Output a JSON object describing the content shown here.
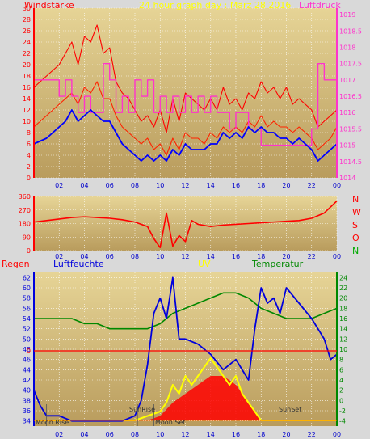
{
  "colors": {
    "bg": "#d9d9d9",
    "plot_top": "#e6d496",
    "plot_bottom": "#b99c5d",
    "wind": "#ff2200",
    "gust": "#ff0000",
    "pressure": "#ff33cc",
    "avg_wind": "#0000ff",
    "humidity": "#0000dd",
    "temperature": "#008800",
    "uv": "#ffff00",
    "rain_axis": "#ff0000",
    "solar_fill": "#ff0000",
    "yellow_text": "#ffff00"
  },
  "header": {
    "left_label": "Windstärke",
    "center_label": "24 hour graph day : März 28 2016",
    "right_label": "Luftdruck"
  },
  "panel2": {
    "compass": [
      "N",
      "W",
      "S",
      "O",
      "N"
    ]
  },
  "panel3": {
    "labels": {
      "rain": "Regen",
      "humidity": "Luftfeuchte",
      "uv": "UV",
      "temperature": "Temperatur"
    },
    "annotations": [
      "Moon Rise",
      "SunRise",
      "Moon Set",
      "SunSet"
    ]
  },
  "chart_data": [
    {
      "type": "line",
      "title": "24 hour graph day : März 28 2016",
      "x_ticks": [
        "02",
        "04",
        "06",
        "08",
        "10",
        "12",
        "14",
        "16",
        "18",
        "20",
        "22",
        "00"
      ],
      "y_left_label": "Windstärke",
      "y_left_ticks": [
        0,
        2,
        4,
        6,
        8,
        10,
        12,
        14,
        16,
        18,
        20,
        22,
        24,
        26,
        28,
        30
      ],
      "ylim_left": [
        0,
        30
      ],
      "y_right_label": "Luftdruck",
      "y_right_ticks": [
        1014,
        1014.5,
        1015,
        1015.5,
        1016,
        1016.5,
        1017,
        1017.5,
        1018,
        1018.5,
        1019
      ],
      "ylim_right": [
        1014,
        1019.2
      ],
      "series": [
        {
          "name": "wind_gust",
          "color": "#ff0000",
          "x": [
            0,
            1,
            2,
            2.5,
            3,
            3.5,
            4,
            4.5,
            5,
            5.5,
            6,
            6.5,
            7,
            7.5,
            8,
            8.5,
            9,
            9.5,
            10,
            10.5,
            11,
            11.5,
            12,
            12.5,
            13,
            13.5,
            14,
            14.5,
            15,
            15.5,
            16,
            16.5,
            17,
            17.5,
            18,
            18.5,
            19,
            19.5,
            20,
            20.5,
            21,
            21.5,
            22,
            22.5,
            23,
            23.5,
            24
          ],
          "values": [
            16,
            18,
            20,
            22,
            24,
            20,
            25,
            24,
            27,
            22,
            23,
            17,
            15,
            14,
            12,
            10,
            11,
            9,
            12,
            8,
            14,
            10,
            15,
            14,
            13,
            12,
            14,
            12,
            16,
            13,
            14,
            12,
            15,
            14,
            17,
            15,
            16,
            14,
            16,
            13,
            14,
            13,
            12,
            9,
            10,
            11,
            12
          ]
        },
        {
          "name": "wind_mean",
          "color": "#ff2200",
          "x": [
            0,
            1,
            2,
            2.5,
            3,
            3.5,
            4,
            4.5,
            5,
            5.5,
            6,
            6.5,
            7,
            7.5,
            8,
            8.5,
            9,
            9.5,
            10,
            10.5,
            11,
            11.5,
            12,
            12.5,
            13,
            13.5,
            14,
            14.5,
            15,
            15.5,
            16,
            16.5,
            17,
            17.5,
            18,
            18.5,
            19,
            19.5,
            20,
            20.5,
            21,
            21.5,
            22,
            22.5,
            23,
            23.5,
            24
          ],
          "values": [
            9,
            11,
            13,
            14,
            15,
            13,
            16,
            15,
            17,
            14,
            14,
            11,
            9,
            8,
            7,
            6,
            7,
            5,
            6,
            4,
            7,
            5,
            8,
            7,
            7,
            6,
            8,
            7,
            9,
            8,
            9,
            8,
            10,
            9,
            11,
            9,
            10,
            9,
            9,
            8,
            9,
            8,
            7,
            5,
            6,
            7,
            9
          ]
        },
        {
          "name": "avg_wind",
          "color": "#0000ff",
          "x": [
            0,
            1,
            2,
            2.5,
            3,
            3.5,
            4,
            4.5,
            5,
            5.5,
            6,
            6.5,
            7,
            7.5,
            8,
            8.5,
            9,
            9.5,
            10,
            10.5,
            11,
            11.5,
            12,
            12.5,
            13,
            13.5,
            14,
            14.5,
            15,
            15.5,
            16,
            16.5,
            17,
            17.5,
            18,
            18.5,
            19,
            19.5,
            20,
            20.5,
            21,
            21.5,
            22,
            22.5,
            23,
            23.5,
            24
          ],
          "values": [
            6,
            7,
            9,
            10,
            12,
            10,
            11,
            12,
            11,
            10,
            10,
            8,
            6,
            5,
            4,
            3,
            4,
            3,
            4,
            3,
            5,
            4,
            6,
            5,
            5,
            5,
            6,
            6,
            8,
            7,
            8,
            7,
            9,
            8,
            9,
            8,
            8,
            7,
            7,
            6,
            7,
            6,
            5,
            3,
            4,
            5,
            6
          ]
        },
        {
          "name": "pressure",
          "color": "#ff33cc",
          "x": [
            0,
            1,
            2,
            2.5,
            3,
            3.5,
            4,
            4.5,
            5,
            5.5,
            6,
            6.5,
            7,
            7.5,
            8,
            8.5,
            9,
            9.5,
            10,
            10.5,
            11,
            11.5,
            12,
            12.5,
            13,
            13.5,
            14,
            14.5,
            15,
            15.5,
            16,
            16.5,
            17,
            17.5,
            18,
            18.5,
            19,
            19.5,
            20,
            20.5,
            21,
            21.5,
            22,
            22.5,
            23,
            23.5,
            24
          ],
          "values": [
            1017,
            1017,
            1016.5,
            1017,
            1016.5,
            1016,
            1016.5,
            1016,
            1016,
            1017.5,
            1017,
            1016,
            1016.5,
            1016,
            1017,
            1016.5,
            1017,
            1016,
            1016.5,
            1016,
            1016.5,
            1016,
            1016.5,
            1016,
            1016.5,
            1016,
            1016.5,
            1016,
            1016,
            1015.5,
            1016,
            1016,
            1015.5,
            1015.5,
            1015,
            1015,
            1015,
            1015,
            1015,
            1015,
            1015,
            1015,
            1015.5,
            1017.5,
            1017,
            1017,
            1017
          ]
        }
      ]
    },
    {
      "type": "line",
      "x_ticks": [
        "02",
        "04",
        "06",
        "08",
        "10",
        "12",
        "14",
        "16",
        "18",
        "20",
        "22",
        "00"
      ],
      "y_ticks": [
        0,
        90,
        180,
        270,
        360
      ],
      "ylim": [
        0,
        360
      ],
      "series": [
        {
          "name": "wind_direction",
          "color": "#ff0000",
          "x": [
            0,
            1,
            2,
            3,
            4,
            5,
            6,
            7,
            8,
            9,
            9.5,
            10,
            10.5,
            11,
            11.5,
            12,
            12.5,
            13,
            14,
            15,
            16,
            17,
            18,
            19,
            20,
            21,
            22,
            23,
            24
          ],
          "values": [
            190,
            200,
            210,
            220,
            225,
            220,
            215,
            205,
            190,
            160,
            80,
            20,
            250,
            30,
            100,
            60,
            200,
            175,
            160,
            170,
            175,
            180,
            185,
            190,
            195,
            200,
            215,
            250,
            330
          ]
        }
      ]
    },
    {
      "type": "line",
      "x_ticks": [
        "02",
        "04",
        "06",
        "08",
        "10",
        "12",
        "14",
        "16",
        "18",
        "20",
        "22",
        "00"
      ],
      "y_left_label": "Luftfeuchte",
      "y_left_ticks": [
        34,
        36,
        38,
        40,
        42,
        44,
        46,
        48,
        50,
        52,
        54,
        56,
        58,
        60,
        62
      ],
      "ylim_left": [
        33,
        63
      ],
      "y_right_label": "Temperatur",
      "y_right_ticks": [
        -4,
        -2,
        0,
        2,
        4,
        6,
        8,
        10,
        12,
        14,
        16,
        18,
        20,
        22,
        24
      ],
      "ylim_right": [
        -5,
        25
      ],
      "rain_marker": "0",
      "series": [
        {
          "name": "humidity",
          "color": "#0000dd",
          "x": [
            0,
            0.5,
            1,
            2,
            3,
            4,
            5,
            6,
            7,
            8,
            8.5,
            9,
            9.5,
            10,
            10.5,
            11,
            11.5,
            12,
            13,
            14,
            15,
            16,
            17,
            17.5,
            18,
            18.5,
            19,
            19.5,
            20,
            21,
            22,
            22.5,
            23,
            23.5,
            24
          ],
          "values": [
            40,
            37,
            35,
            35,
            34,
            34,
            34,
            34,
            34,
            35,
            38,
            45,
            55,
            58,
            54,
            62,
            50,
            50,
            49,
            47,
            44,
            46,
            42,
            52,
            60,
            57,
            58,
            55,
            60,
            57,
            54,
            52,
            50,
            46,
            47
          ]
        },
        {
          "name": "temperature",
          "color": "#008800",
          "x": [
            0,
            1,
            2,
            3,
            4,
            5,
            6,
            7,
            8,
            9,
            10,
            11,
            12,
            13,
            14,
            15,
            16,
            17,
            18,
            19,
            20,
            21,
            22,
            23,
            24
          ],
          "values": [
            16,
            16,
            16,
            16,
            15,
            15,
            14,
            14,
            14,
            14,
            15,
            17,
            18,
            19,
            20,
            21,
            21,
            20,
            18,
            17,
            16,
            16,
            16,
            17,
            18
          ]
        },
        {
          "name": "uv",
          "color": "#ffff00",
          "x": [
            0,
            8,
            9,
            10,
            10.5,
            11,
            11.5,
            12,
            12.5,
            13,
            13.5,
            14,
            14.5,
            15,
            15.5,
            16,
            16.5,
            17,
            17.5,
            18,
            24
          ],
          "values": [
            0,
            0,
            0.5,
            1,
            2,
            4,
            3,
            5,
            4,
            5,
            6,
            7,
            6,
            5,
            4,
            5,
            3,
            2,
            1,
            0,
            0
          ]
        },
        {
          "name": "solar",
          "color": "#ff0000",
          "x": [
            0,
            9,
            10,
            11,
            12,
            13,
            14,
            15,
            16,
            17,
            18,
            24
          ],
          "values": [
            0,
            0,
            0.5,
            2,
            3,
            4,
            5,
            5,
            4,
            2,
            0,
            0
          ]
        }
      ]
    }
  ]
}
